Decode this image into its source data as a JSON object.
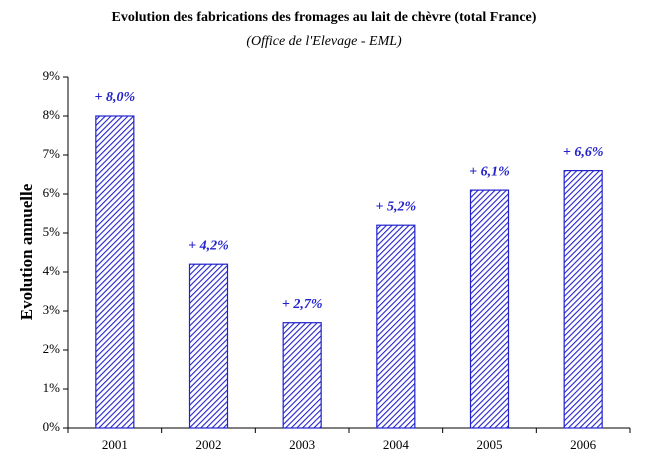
{
  "chart_data": {
    "type": "bar",
    "title": "Evolution des fabrications des fromages au lait de chèvre (total France)",
    "subtitle": "(Office de l'Elevage - EML)",
    "y_label": "Evolution annuelle",
    "categories": [
      "2001",
      "2002",
      "2003",
      "2004",
      "2005",
      "2006"
    ],
    "values": [
      8.0,
      4.2,
      2.7,
      5.2,
      6.1,
      6.6
    ],
    "value_labels": [
      "+ 8,0%",
      "+ 4,2%",
      "+ 2,7%",
      "+ 5,2%",
      "+ 6,1%",
      "+ 6,6%"
    ],
    "color": "#2222cc",
    "ylim": [
      0,
      9
    ],
    "yticks": [
      {
        "value": 0,
        "label": "0%"
      },
      {
        "value": 1,
        "label": "1%"
      },
      {
        "value": 2,
        "label": "2%"
      },
      {
        "value": 3,
        "label": "3%"
      },
      {
        "value": 4,
        "label": "4%"
      },
      {
        "value": 5,
        "label": "5%"
      },
      {
        "value": 6,
        "label": "6%"
      },
      {
        "value": 7,
        "label": "7%"
      },
      {
        "value": 8,
        "label": "8%"
      },
      {
        "value": 9,
        "label": "9%"
      }
    ],
    "grid": false
  }
}
